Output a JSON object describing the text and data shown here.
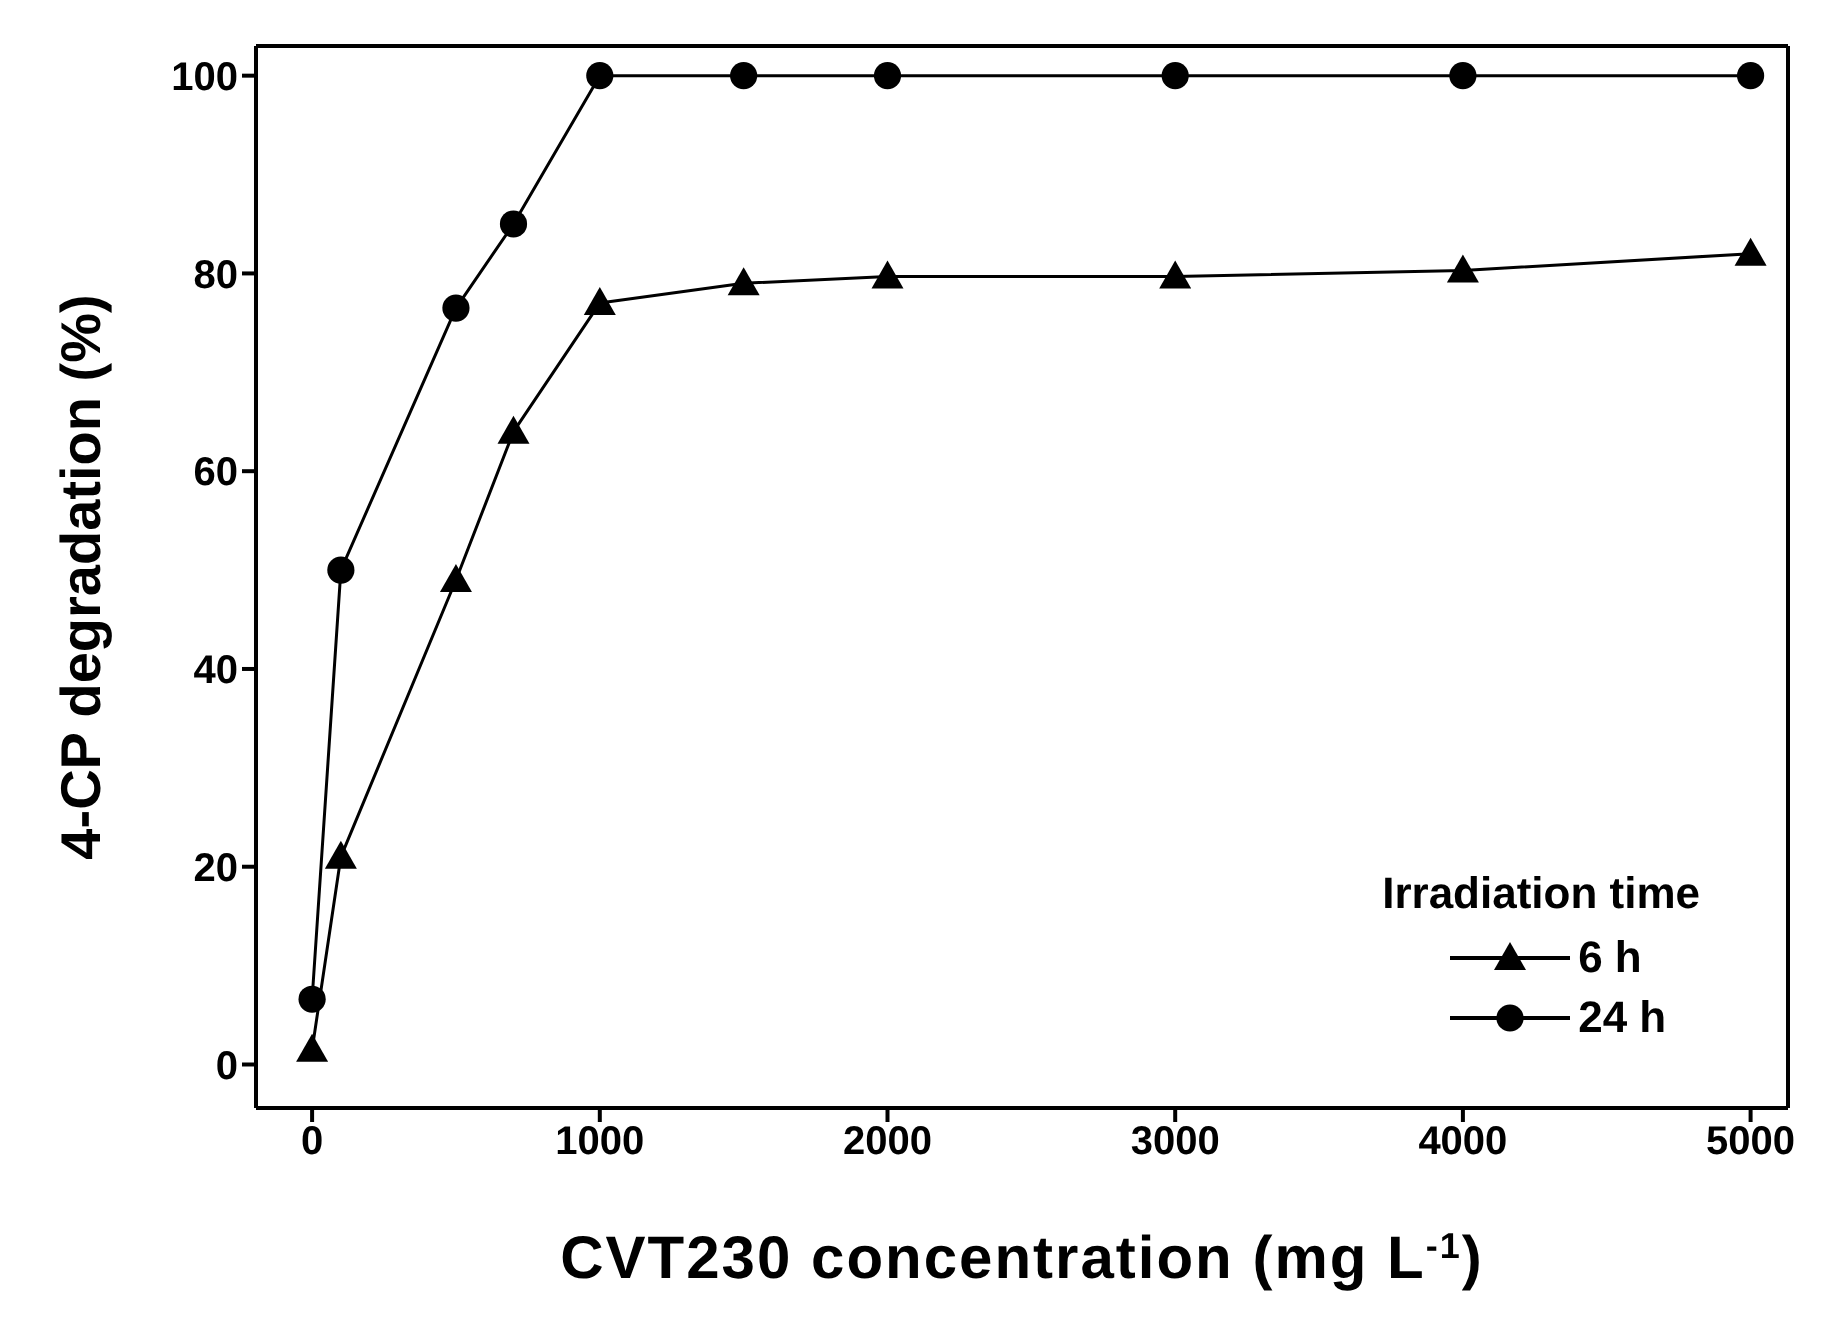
{
  "chart_data": {
    "type": "line",
    "xlabel": "CVT230 concentration (mg L$^{-1}$)",
    "ylabel": "4-CP degradation (%)",
    "legend_title": "Irradiation time",
    "x": [
      0,
      100,
      500,
      700,
      1000,
      1500,
      2000,
      3000,
      4000,
      5000
    ],
    "series": [
      {
        "name": "6 h",
        "color": "#000000",
        "marker": "triangle",
        "values": [
          1.5,
          21,
          49,
          64,
          77,
          79,
          79.7,
          79.7,
          80.3,
          82
        ]
      },
      {
        "name": "24 h",
        "color": "#000000",
        "marker": "circle",
        "values": [
          6.6,
          50,
          76.5,
          85,
          100,
          100,
          100,
          100,
          100,
          100
        ]
      }
    ],
    "xlim": [
      -195,
      5130
    ],
    "xticks": [
      0,
      1000,
      2000,
      3000,
      4000,
      5000
    ],
    "ylim": [
      -4.4,
      103
    ],
    "yticks": [
      0,
      20,
      40,
      60,
      80,
      100
    ],
    "grid": false,
    "legend": "bottom right",
    "line_style": "solid"
  }
}
